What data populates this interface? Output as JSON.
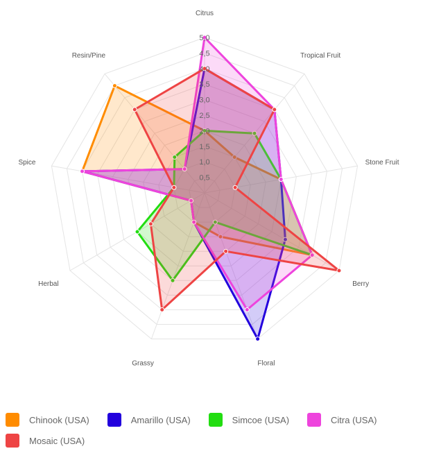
{
  "chart_data": {
    "type": "radar",
    "axes": [
      "Citrus",
      "Tropical Fruit",
      "Stone Fruit",
      "Berry",
      "Floral",
      "Grassy",
      "Herbal",
      "Spice",
      "Resin/Pine"
    ],
    "r_range": [
      0,
      5
    ],
    "r_ticks": [
      "0,5",
      "1,0",
      "1,5",
      "2,0",
      "2,5",
      "3,0",
      "3,5",
      "4,0",
      "4,5",
      "5,0"
    ],
    "grid": true,
    "legend_position": "bottom",
    "series": [
      {
        "name": "Chinook (USA)",
        "color": "#ff8c00",
        "values": [
          2.0,
          1.5,
          2.5,
          4.0,
          1.5,
          1.0,
          0.5,
          4.0,
          4.5
        ]
      },
      {
        "name": "Amarillo (USA)",
        "color": "#2200dd",
        "values": [
          4.0,
          3.5,
          2.5,
          3.0,
          5.0,
          1.0,
          0.5,
          4.0,
          1.0
        ]
      },
      {
        "name": "Simcoe (USA)",
        "color": "#22dd11",
        "values": [
          2.0,
          2.5,
          2.5,
          4.0,
          1.0,
          3.0,
          2.5,
          1.0,
          1.5
        ]
      },
      {
        "name": "Citra (USA)",
        "color": "#ee44dd",
        "values": [
          5.0,
          3.5,
          2.5,
          4.0,
          4.0,
          1.0,
          0.5,
          4.0,
          1.0
        ]
      },
      {
        "name": "Mosaic (USA)",
        "color": "#ee4444",
        "values": [
          4.0,
          3.5,
          1.0,
          5.0,
          2.0,
          4.0,
          2.0,
          1.0,
          3.5
        ]
      }
    ]
  }
}
